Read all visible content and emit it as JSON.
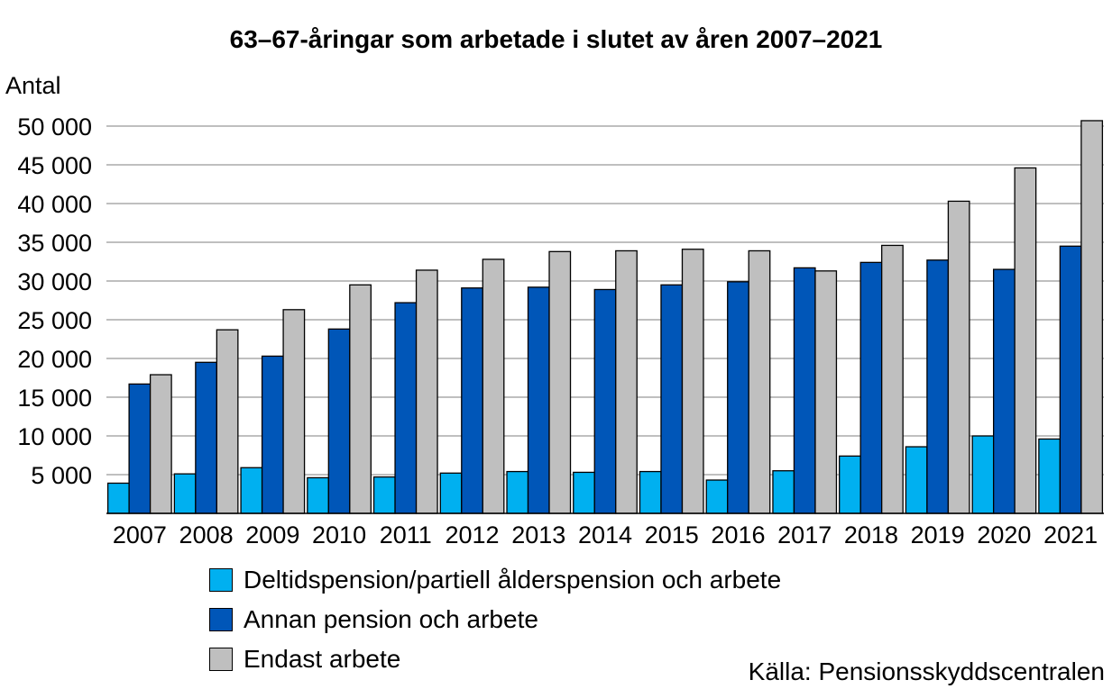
{
  "chart_data": {
    "type": "bar",
    "title": "63–67-åringar som arbetade i slutet av åren 2007–2021",
    "ylabel": "Antal",
    "xlabel": "",
    "ylim": [
      0,
      50000
    ],
    "yticks": [
      5000,
      10000,
      15000,
      20000,
      25000,
      30000,
      35000,
      40000,
      45000,
      50000
    ],
    "ytick_labels": [
      "5 000",
      "10 000",
      "15 000",
      "20 000",
      "25 000",
      "30 000",
      "35 000",
      "40 000",
      "45 000",
      "50 000"
    ],
    "grid": true,
    "legend_position": "bottom",
    "categories": [
      "2007",
      "2008",
      "2009",
      "2010",
      "2011",
      "2012",
      "2013",
      "2014",
      "2015",
      "2016",
      "2017",
      "2018",
      "2019",
      "2020",
      "2021"
    ],
    "series": [
      {
        "name": "Deltidspension/partiell ålderspension och arbete",
        "color": "#00b0f0",
        "values": [
          3900,
          5100,
          5900,
          4600,
          4700,
          5200,
          5400,
          5300,
          5400,
          4300,
          5500,
          7400,
          8600,
          10000,
          9600
        ]
      },
      {
        "name": "Annan pension och arbete",
        "color": "#0056b8",
        "values": [
          16700,
          19500,
          20300,
          23800,
          27200,
          29100,
          29200,
          28900,
          29500,
          29900,
          31700,
          32400,
          32700,
          31500,
          34500
        ]
      },
      {
        "name": "Endast arbete",
        "color": "#bfbfbf",
        "values": [
          17900,
          23700,
          26300,
          29500,
          31400,
          32800,
          33800,
          33900,
          34100,
          33900,
          31300,
          34600,
          40300,
          44600,
          50700
        ]
      }
    ],
    "source": "Källa: Pensionsskyddscentralen"
  }
}
